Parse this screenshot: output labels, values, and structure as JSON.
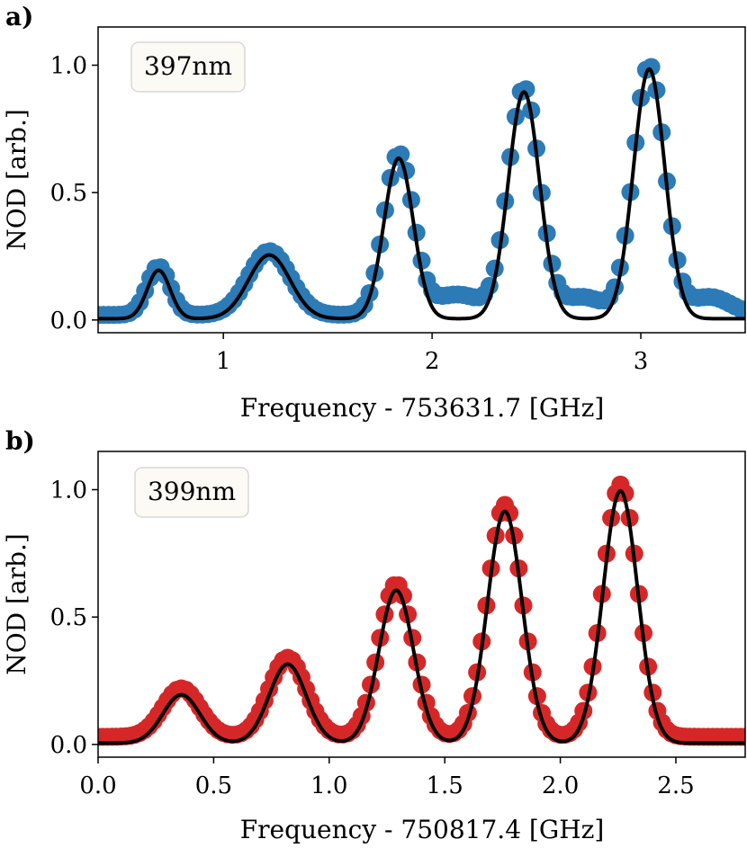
{
  "chart_data": [
    {
      "type": "scatter",
      "panel_label": "a)",
      "legend_text": "397nm",
      "xlabel": "Frequency - 753631.7 [GHz]",
      "ylabel": "NOD [arb.]",
      "xlim": [
        0.4,
        3.5
      ],
      "ylim": [
        -0.05,
        1.15
      ],
      "xticks": [
        1,
        2,
        3
      ],
      "xtick_labels": [
        "1",
        "2",
        "3"
      ],
      "yticks": [
        0.0,
        0.5,
        1.0
      ],
      "ytick_labels": [
        "0.0",
        "0.5",
        "1.0"
      ],
      "marker_color": "#2c7bb6",
      "fit_color": "#000000",
      "data_range": [
        0.4,
        3.5
      ],
      "data_step": 0.025,
      "peaks": [
        {
          "center": 0.69,
          "amplitude": 0.19,
          "sigma": 0.055
        },
        {
          "center": 1.22,
          "amplitude": 0.25,
          "sigma": 0.1
        },
        {
          "center": 1.84,
          "amplitude": 0.63,
          "sigma": 0.07
        },
        {
          "center": 2.44,
          "amplitude": 0.89,
          "sigma": 0.075
        },
        {
          "center": 3.04,
          "amplitude": 0.98,
          "sigma": 0.075
        }
      ],
      "data_baseline": 0.02,
      "fit_baseline": 0.005,
      "shoulders": [
        {
          "center": 2.12,
          "amplitude": 0.08,
          "sigma": 0.12
        },
        {
          "center": 2.72,
          "amplitude": 0.07,
          "sigma": 0.1
        },
        {
          "center": 3.33,
          "amplitude": 0.07,
          "sigma": 0.1
        }
      ]
    },
    {
      "type": "scatter",
      "panel_label": "b)",
      "legend_text": "399nm",
      "xlabel": "Frequency - 750817.4 [GHz]",
      "ylabel": "NOD [arb.]",
      "xlim": [
        0.0,
        2.8
      ],
      "ylim": [
        -0.05,
        1.15
      ],
      "xticks": [
        0.0,
        0.5,
        1.0,
        1.5,
        2.0,
        2.5
      ],
      "xtick_labels": [
        "0.0",
        "0.5",
        "1.0",
        "1.5",
        "2.0",
        "2.5"
      ],
      "yticks": [
        0.0,
        0.5,
        1.0
      ],
      "ytick_labels": [
        "0.0",
        "0.5",
        "1.0"
      ],
      "marker_color": "#d62728",
      "fit_color": "#000000",
      "data_range": [
        0.0,
        2.8
      ],
      "data_step": 0.02,
      "peaks": [
        {
          "center": 0.36,
          "amplitude": 0.19,
          "sigma": 0.08
        },
        {
          "center": 0.82,
          "amplitude": 0.31,
          "sigma": 0.08
        },
        {
          "center": 1.29,
          "amplitude": 0.6,
          "sigma": 0.075
        },
        {
          "center": 1.76,
          "amplitude": 0.91,
          "sigma": 0.075
        },
        {
          "center": 2.26,
          "amplitude": 0.99,
          "sigma": 0.075
        }
      ],
      "data_baseline": 0.03,
      "fit_baseline": 0.005,
      "shoulders": []
    }
  ]
}
